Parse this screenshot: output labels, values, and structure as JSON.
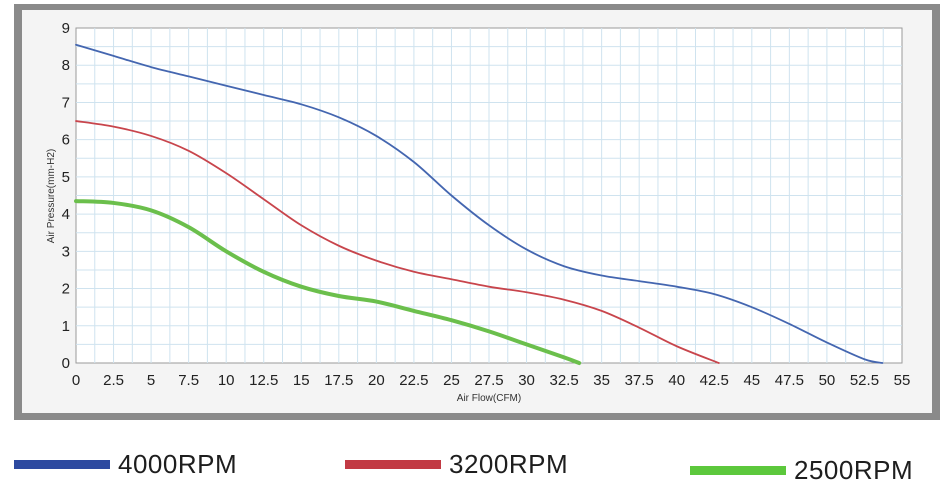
{
  "chart_data": {
    "type": "line",
    "title": "",
    "xlabel": "Air Flow(CFM)",
    "ylabel": "Air Pressure(mm-H2)",
    "xlim": [
      0,
      55
    ],
    "ylim": [
      0,
      9
    ],
    "xticks": [
      "0",
      "2.5",
      "5",
      "7.5",
      "10",
      "12.5",
      "15",
      "17.5",
      "20",
      "22.5",
      "25",
      "27.5",
      "30",
      "32.5",
      "35",
      "37.5",
      "40",
      "42.5",
      "45",
      "47.5",
      "50",
      "52.5",
      "55"
    ],
    "yticks": [
      "0",
      "1",
      "2",
      "3",
      "4",
      "5",
      "6",
      "7",
      "8",
      "9"
    ],
    "grid": true,
    "legend_position": "bottom",
    "series": [
      {
        "name": "4000RPM",
        "color": "#4466b0",
        "x": [
          0,
          2.5,
          5,
          7.5,
          10,
          12.5,
          15,
          17.5,
          20,
          22.5,
          25,
          27.5,
          30,
          32.5,
          35,
          37.5,
          40,
          42.5,
          45,
          47.5,
          50,
          52.5,
          53.7
        ],
        "y": [
          8.55,
          8.25,
          7.95,
          7.7,
          7.45,
          7.2,
          6.95,
          6.6,
          6.1,
          5.4,
          4.5,
          3.7,
          3.05,
          2.6,
          2.35,
          2.2,
          2.05,
          1.85,
          1.5,
          1.05,
          0.55,
          0.1,
          0
        ]
      },
      {
        "name": "3200RPM",
        "color": "#c8454c",
        "x": [
          0,
          2.5,
          5,
          7.5,
          10,
          12.5,
          15,
          17.5,
          20,
          22.5,
          25,
          27.5,
          30,
          32.5,
          35,
          37.5,
          40,
          42.8
        ],
        "y": [
          6.5,
          6.35,
          6.1,
          5.7,
          5.1,
          4.4,
          3.7,
          3.15,
          2.75,
          2.45,
          2.25,
          2.05,
          1.9,
          1.7,
          1.4,
          0.95,
          0.45,
          0
        ]
      },
      {
        "name": "2500RPM",
        "color": "#6bbf4c",
        "x": [
          0,
          2.5,
          5,
          7.5,
          10,
          12.5,
          15,
          17.5,
          20,
          22.5,
          25,
          27.5,
          30,
          32.5,
          33.5
        ],
        "y": [
          4.35,
          4.3,
          4.1,
          3.65,
          3.0,
          2.45,
          2.05,
          1.8,
          1.65,
          1.4,
          1.15,
          0.85,
          0.5,
          0.15,
          0
        ]
      }
    ]
  }
}
